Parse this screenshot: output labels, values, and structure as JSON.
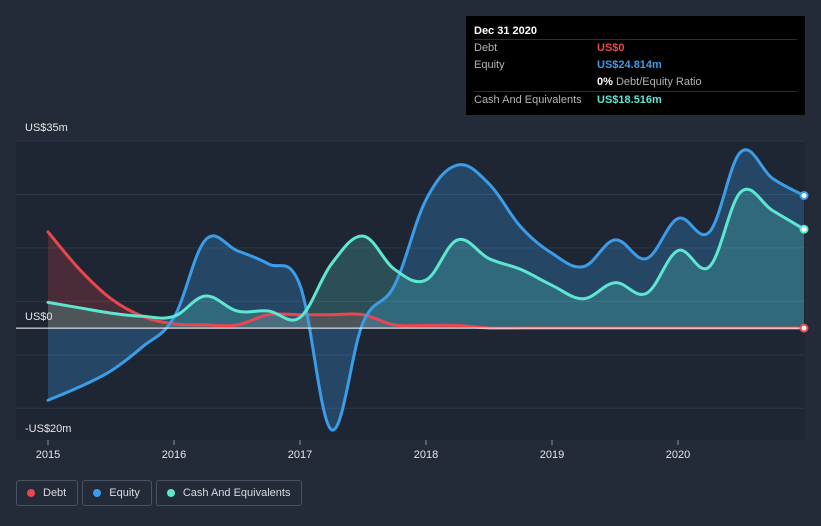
{
  "tooltip": {
    "date": "Dec 31 2020",
    "rows": [
      {
        "label": "Debt",
        "value": "US$0",
        "color": "#e8474f"
      },
      {
        "label": "Equity",
        "value": "US$24.814m",
        "color": "#3b9de8"
      },
      {
        "ratio_value": "0%",
        "ratio_label": "Debt/Equity Ratio"
      },
      {
        "label": "Cash And Equivalents",
        "value": "US$18.516m",
        "color": "#5ee6d0"
      }
    ]
  },
  "chart_data": {
    "type": "area",
    "ylim": [
      -20,
      35
    ],
    "y_ticks": [
      {
        "value": 35,
        "label": "US$35m"
      },
      {
        "value": 0,
        "label": "US$0"
      },
      {
        "value": -20,
        "label": "-US$20m"
      }
    ],
    "xlim": [
      2014.98,
      2021.0
    ],
    "x_ticks": [
      {
        "value": 2015,
        "label": "2015"
      },
      {
        "value": 2016,
        "label": "2016"
      },
      {
        "value": 2017,
        "label": "2017"
      },
      {
        "value": 2018,
        "label": "2018"
      },
      {
        "value": 2019,
        "label": "2019"
      },
      {
        "value": 2020,
        "label": "2020"
      }
    ],
    "series": [
      {
        "name": "Debt",
        "color": "#e8474f",
        "points": [
          [
            2015.0,
            18
          ],
          [
            2015.25,
            11
          ],
          [
            2015.5,
            5.5
          ],
          [
            2015.75,
            2.2
          ],
          [
            2016.0,
            0.8
          ],
          [
            2016.25,
            0.6
          ],
          [
            2016.5,
            0.6
          ],
          [
            2016.75,
            2.5
          ],
          [
            2017.0,
            2.5
          ],
          [
            2017.25,
            2.5
          ],
          [
            2017.5,
            2.5
          ],
          [
            2017.75,
            0.6
          ],
          [
            2018.0,
            0.5
          ],
          [
            2018.25,
            0.5
          ],
          [
            2018.5,
            0
          ],
          [
            2018.75,
            0
          ],
          [
            2019.0,
            0
          ],
          [
            2019.5,
            0
          ],
          [
            2020.0,
            0
          ],
          [
            2020.5,
            0
          ],
          [
            2021.0,
            0
          ]
        ]
      },
      {
        "name": "Equity",
        "color": "#3b9de8",
        "points": [
          [
            2015.0,
            -13.5
          ],
          [
            2015.25,
            -11
          ],
          [
            2015.5,
            -8
          ],
          [
            2015.75,
            -3.5
          ],
          [
            2016.0,
            2.0
          ],
          [
            2016.25,
            16.5
          ],
          [
            2016.5,
            14.5
          ],
          [
            2016.75,
            12
          ],
          [
            2017.0,
            8
          ],
          [
            2017.25,
            -19
          ],
          [
            2017.5,
            1
          ],
          [
            2017.75,
            8
          ],
          [
            2018.0,
            24
          ],
          [
            2018.25,
            30.5
          ],
          [
            2018.5,
            27
          ],
          [
            2018.75,
            19
          ],
          [
            2019.0,
            14
          ],
          [
            2019.25,
            11.5
          ],
          [
            2019.5,
            16.5
          ],
          [
            2019.75,
            13
          ],
          [
            2020.0,
            20.5
          ],
          [
            2020.25,
            18
          ],
          [
            2020.5,
            33
          ],
          [
            2020.75,
            28
          ],
          [
            2021.0,
            24.8
          ]
        ]
      },
      {
        "name": "Cash And Equivalents",
        "color": "#5ee6d0",
        "points": [
          [
            2015.0,
            4.8
          ],
          [
            2015.25,
            3.8
          ],
          [
            2015.5,
            2.8
          ],
          [
            2015.75,
            2.2
          ],
          [
            2016.0,
            2.2
          ],
          [
            2016.25,
            6
          ],
          [
            2016.5,
            3.2
          ],
          [
            2016.75,
            3.2
          ],
          [
            2017.0,
            2.0
          ],
          [
            2017.25,
            12
          ],
          [
            2017.5,
            17.2
          ],
          [
            2017.75,
            11
          ],
          [
            2018.0,
            9
          ],
          [
            2018.25,
            16.5
          ],
          [
            2018.5,
            13
          ],
          [
            2018.75,
            11
          ],
          [
            2019.0,
            8
          ],
          [
            2019.25,
            5.5
          ],
          [
            2019.5,
            8.5
          ],
          [
            2019.75,
            6.5
          ],
          [
            2020.0,
            14.5
          ],
          [
            2020.25,
            11.5
          ],
          [
            2020.5,
            25.5
          ],
          [
            2020.75,
            22
          ],
          [
            2021.0,
            18.5
          ]
        ]
      }
    ],
    "legend": [
      {
        "label": "Debt",
        "color": "#e8474f"
      },
      {
        "label": "Equity",
        "color": "#3b9de8"
      },
      {
        "label": "Cash And Equivalents",
        "color": "#5ee6d0"
      }
    ]
  }
}
